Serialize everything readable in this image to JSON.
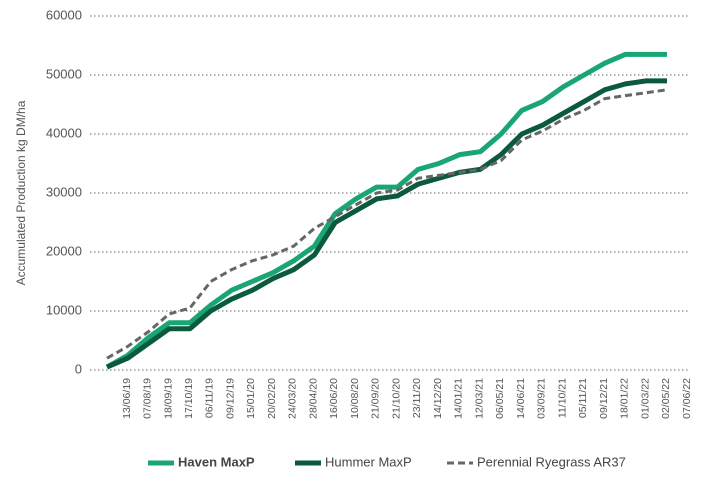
{
  "chart_data": {
    "type": "line",
    "ylabel": "Accumulated Production kg DM/ha",
    "categories": [
      "13/06/19",
      "07/08/19",
      "18/09/19",
      "17/10/19",
      "06/11/19",
      "09/12/19",
      "15/01/20",
      "20/02/20",
      "24/03/20",
      "28/04/20",
      "16/06/20",
      "10/08/20",
      "21/09/20",
      "21/10/20",
      "23/11/20",
      "14/12/20",
      "14/01/21",
      "12/03/21",
      "06/05/21",
      "14/06/21",
      "03/09/21",
      "11/10/21",
      "05/11/21",
      "09/12/21",
      "18/01/22",
      "01/03/22",
      "02/05/22",
      "07/06/22"
    ],
    "series": [
      {
        "name": "Haven MaxP",
        "color": "#1aa673",
        "dash": false,
        "values": [
          500,
          2500,
          5500,
          8000,
          8000,
          11000,
          13500,
          15000,
          16500,
          18500,
          21000,
          26500,
          29000,
          31000,
          31000,
          34000,
          35000,
          36500,
          37000,
          40000,
          44000,
          45500,
          48000,
          50000,
          52000,
          53500,
          53500,
          53500
        ]
      },
      {
        "name": "Hummer MaxP",
        "color": "#0b5a3e",
        "dash": false,
        "values": [
          500,
          2000,
          4500,
          7000,
          7000,
          10000,
          12000,
          13500,
          15500,
          17000,
          19500,
          25000,
          27000,
          29000,
          29500,
          31500,
          32500,
          33500,
          34000,
          36500,
          40000,
          41500,
          43500,
          45500,
          47500,
          48500,
          49000,
          49000
        ]
      },
      {
        "name": "Perennial Ryegrass AR37",
        "color": "#666666",
        "dash": true,
        "values": [
          2000,
          4000,
          6500,
          9500,
          10500,
          15000,
          17000,
          18500,
          19500,
          21000,
          24000,
          26000,
          28000,
          30000,
          30500,
          32500,
          33000,
          33500,
          34000,
          35500,
          39000,
          40500,
          42500,
          44000,
          46000,
          46500,
          47000,
          47500
        ]
      }
    ],
    "ylim": [
      0,
      60000
    ],
    "yticks": [
      0,
      10000,
      20000,
      30000,
      40000,
      50000,
      60000
    ],
    "grid": true,
    "legend": "bottom"
  }
}
